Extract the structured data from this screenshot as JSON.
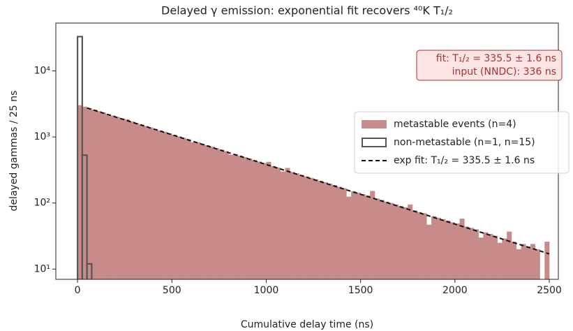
{
  "chart_data": {
    "type": "histogram",
    "title": "Delayed γ emission: exponential fit recovers ⁴⁰K T₁/₂",
    "xlabel": "Cumulative delay time (ns)",
    "ylabel": "delayed gammas / 25 ns",
    "xlim": [
      -115,
      2548
    ],
    "ylim": [
      7,
      53000
    ],
    "log_y": true,
    "xticks": [
      0,
      500,
      1000,
      1500,
      2000,
      2500
    ],
    "yticks": [
      {
        "value": 10,
        "label": "10¹"
      },
      {
        "value": 100,
        "label": "10²"
      },
      {
        "value": 1000,
        "label": "10³"
      },
      {
        "value": 10000,
        "label": "10⁴"
      }
    ],
    "legend": "center right",
    "series": [
      {
        "name": "metastable events (n=4)",
        "kind": "filled",
        "color": "#c78b8a",
        "bins": [
          0,
          25,
          50,
          75,
          100,
          125,
          150,
          175,
          200,
          225,
          250,
          275,
          300,
          325,
          350,
          375,
          400,
          425,
          450,
          475,
          500,
          525,
          550,
          575,
          600,
          625,
          650,
          675,
          700,
          725,
          750,
          775,
          800,
          825,
          850,
          875,
          900,
          925,
          950,
          975,
          1000,
          1025,
          1050,
          1075,
          1100,
          1125,
          1150,
          1175,
          1200,
          1225,
          1250,
          1275,
          1300,
          1325,
          1350,
          1375,
          1400,
          1425,
          1450,
          1475,
          1500,
          1525,
          1550,
          1575,
          1600,
          1625,
          1650,
          1675,
          1700,
          1725,
          1750,
          1775,
          1800,
          1825,
          1850,
          1875,
          1900,
          1925,
          1950,
          1975,
          2000,
          2025,
          2050,
          2075,
          2100,
          2125,
          2150,
          2175,
          2200,
          2225,
          2250,
          2275,
          2300,
          2325,
          2350,
          2375,
          2400,
          2425,
          2450,
          2475,
          2500
        ],
        "values": [
          3026,
          2873,
          2728,
          2591,
          2460,
          2336,
          2219,
          2107,
          2001,
          1900,
          1850,
          1713,
          1627,
          1545,
          1467,
          1393,
          1323,
          1256,
          1193,
          1133,
          1076,
          1021,
          970,
          921,
          830,
          831,
          789,
          749,
          711,
          675,
          641,
          609,
          540,
          549,
          522,
          495,
          470,
          447,
          424,
          403,
          420,
          363,
          345,
          300,
          340,
          295,
          281,
          266,
          253,
          240,
          228,
          217,
          206,
          196,
          186,
          176,
          168,
          125,
          151,
          144,
          136,
          130,
          152,
          117,
          111,
          105,
          100,
          95,
          90,
          86,
          95,
          77,
          73,
          70,
          47,
          63,
          60,
          57,
          54,
          51,
          49,
          58,
          44,
          42,
          40,
          30,
          36,
          34,
          32,
          25,
          29,
          37,
          26,
          20,
          24,
          22,
          24,
          20,
          5,
          26
        ]
      },
      {
        "name": "non-metastable (n=1, n=15)",
        "kind": "step",
        "color": "#555555",
        "bins": [
          0,
          25,
          50,
          75
        ],
        "values": [
          33000,
          530,
          12
        ]
      },
      {
        "name": "exp fit: T₁/₂ = 335.5 ± 1.6 ns",
        "kind": "fit",
        "color": "#111111",
        "x": [
          50,
          2500
        ],
        "values": [
          2750,
          17
        ]
      }
    ],
    "annotation": [
      "fit:  T₁/₂ = 335.5 ± 1.6 ns",
      "input (NNDC):  336 ns"
    ]
  }
}
